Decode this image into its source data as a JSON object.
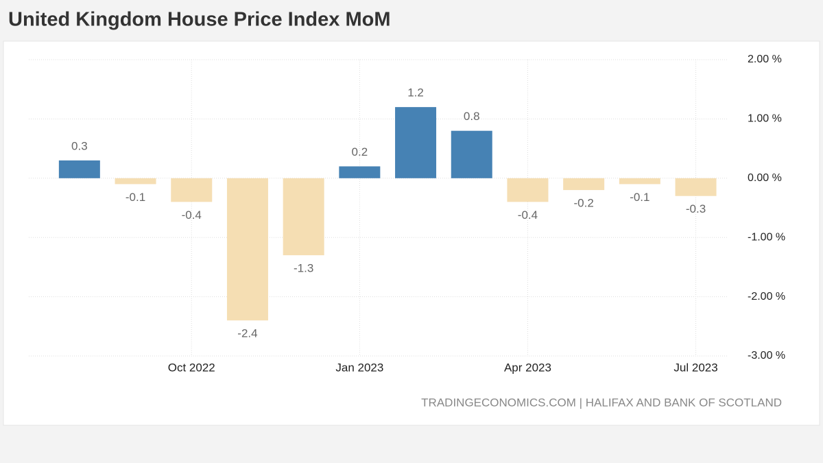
{
  "chart_data": {
    "type": "bar",
    "title": "United Kingdom House Price Index MoM",
    "source": "TRADINGECONOMICS.COM | HALIFAX AND BANK OF SCOTLAND",
    "categories": [
      null,
      null,
      "Oct 2022",
      null,
      null,
      "Jan 2023",
      null,
      null,
      "Apr 2023",
      null,
      null,
      "Jul 2023"
    ],
    "values": [
      0.3,
      -0.1,
      -0.4,
      -2.4,
      -1.3,
      0.2,
      1.2,
      0.8,
      -0.4,
      -0.2,
      -0.1,
      -0.3
    ],
    "positive_color": "#4682b4",
    "negative_color": "#f5deb3",
    "ylim": [
      -3,
      2
    ],
    "yticks": [
      {
        "value": -3,
        "label": "-3.00 %"
      },
      {
        "value": -2,
        "label": "-2.00 %"
      },
      {
        "value": -1,
        "label": "-1.00 %"
      },
      {
        "value": 0,
        "label": "0.00 %"
      },
      {
        "value": 1,
        "label": "1.00 %"
      },
      {
        "value": 2,
        "label": "2.00 %"
      }
    ],
    "grid": true
  }
}
